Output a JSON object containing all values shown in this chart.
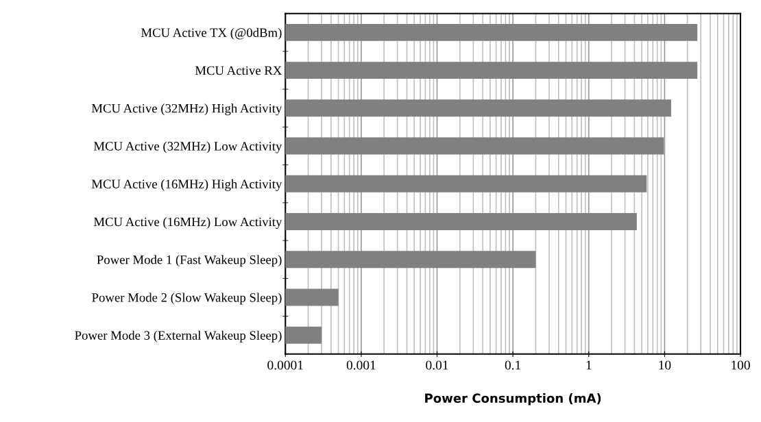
{
  "chart_data": {
    "type": "bar",
    "orientation": "horizontal",
    "xlabel": "Power Consumption (mA)",
    "categories": [
      "MCU Active TX (@0dBm)",
      "MCU Active RX",
      "MCU Active (32MHz) High Activity",
      "MCU Active (32MHz) Low Activity",
      "MCU Active (16MHz) High Activity",
      "MCU Active (16MHz) Low Activity",
      "Power Mode 1 (Fast Wakeup Sleep)",
      "Power Mode 2 (Slow Wakeup Sleep)",
      "Power Mode 3 (External Wakeup Sleep)"
    ],
    "values": [
      27,
      27,
      12.2,
      9.8,
      5.8,
      4.3,
      0.2,
      0.0005,
      0.0003
    ],
    "color": "#808080",
    "log": "x",
    "xlim": [
      0.0001,
      100
    ],
    "xticks": [
      0.0001,
      0.001,
      0.01,
      0.1,
      1,
      10,
      100
    ],
    "grid": "x"
  }
}
